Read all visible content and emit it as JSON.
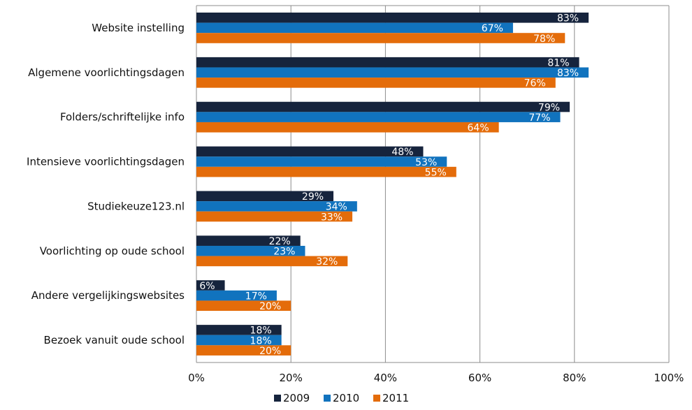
{
  "chart_data": {
    "type": "bar",
    "orientation": "horizontal",
    "categories": [
      "Website instelling",
      "Algemene voorlichtingsdagen",
      "Folders/schriftelijke info",
      "Intensieve voorlichtingsdagen",
      "Studiekeuze123.nl",
      "Voorlichting op oude school",
      "Andere vergelijkingswebsites",
      "Bezoek vanuit oude school"
    ],
    "series": [
      {
        "name": "2009",
        "color": "#16243d",
        "values": [
          83,
          81,
          79,
          48,
          29,
          22,
          6,
          18
        ],
        "labels": [
          "83%",
          "81%",
          "79%",
          "48%",
          "29%",
          "22%",
          "6%",
          "18%"
        ]
      },
      {
        "name": "2010",
        "color": "#1173be",
        "values": [
          67,
          83,
          77,
          53,
          34,
          23,
          17,
          18
        ],
        "labels": [
          "67%",
          "83%",
          "77%",
          "53%",
          "34%",
          "23%",
          "17%",
          "18%"
        ]
      },
      {
        "name": "2011",
        "color": "#e46c0a",
        "values": [
          78,
          76,
          64,
          55,
          33,
          32,
          20,
          20
        ],
        "labels": [
          "78%",
          "76%",
          "64%",
          "55%",
          "33%",
          "32%",
          "20%",
          "20%"
        ]
      }
    ],
    "xlim": [
      0,
      100
    ],
    "xticks": [
      "0%",
      "20%",
      "40%",
      "60%",
      "80%",
      "100%"
    ],
    "grid": true,
    "legend_position": "bottom",
    "title": "",
    "xlabel": "",
    "ylabel": ""
  }
}
